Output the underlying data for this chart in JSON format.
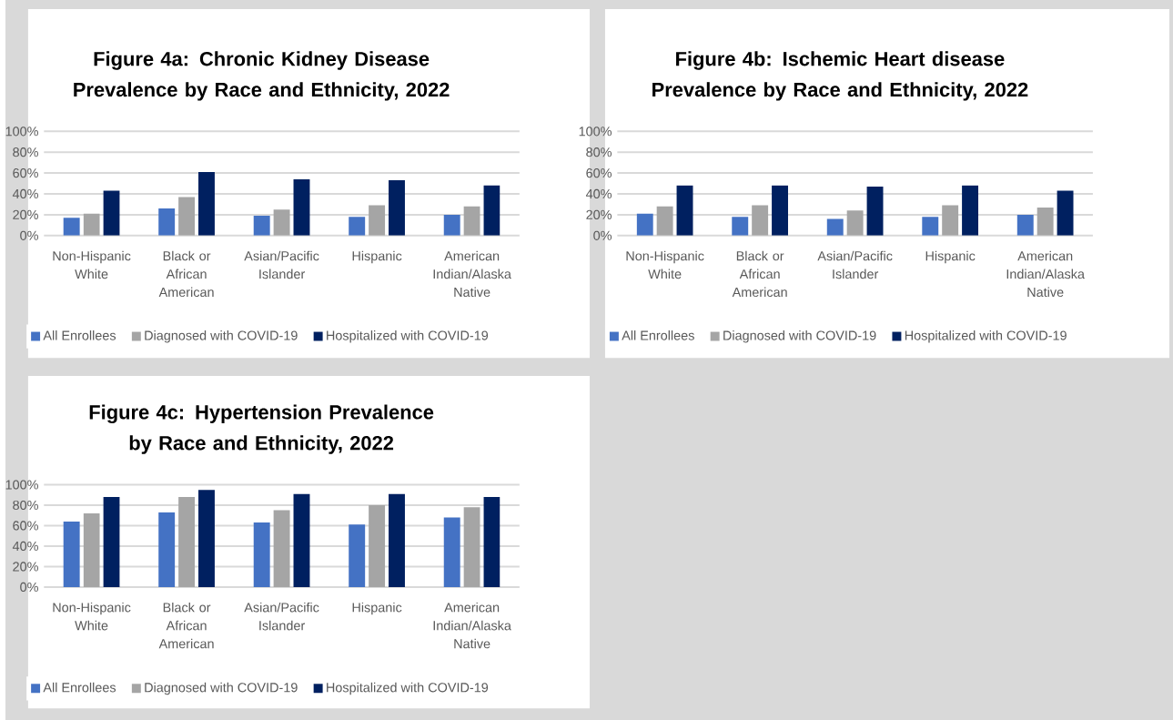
{
  "chart_data": [
    {
      "type": "bar",
      "title": "Figure 4a: Chronic Kidney Disease Prevalence by Race and Ethnicity, 2022",
      "categories": [
        "Non-Hispanic White",
        "Black or African American",
        "Asian/Pacific Islander",
        "Hispanic",
        "American Indian/Alaska Native"
      ],
      "series": [
        {
          "name": "All Enrollees",
          "color": "#4472c4",
          "values": [
            17,
            26,
            19,
            18,
            20
          ]
        },
        {
          "name": "Diagnosed with COVID-19",
          "color": "#a5a5a5",
          "values": [
            21,
            37,
            25,
            29,
            28
          ]
        },
        {
          "name": "Hospitalized with COVID-19",
          "color": "#002060",
          "values": [
            43,
            61,
            54,
            53,
            48
          ]
        }
      ],
      "ylim": [
        0,
        100
      ],
      "yticks": [
        {
          "value": 0,
          "label": "0%"
        },
        {
          "value": 20,
          "label": "20%"
        },
        {
          "value": 40,
          "label": "40%"
        },
        {
          "value": 60,
          "label": "60%"
        },
        {
          "value": 80,
          "label": "80%"
        },
        {
          "value": 100,
          "label": "100%"
        }
      ],
      "grid": "y",
      "legend": "bottom"
    },
    {
      "type": "bar",
      "title": "Figure 4b: Ischemic Heart disease Prevalence by Race and Ethnicity, 2022",
      "categories": [
        "Non-Hispanic White",
        "Black or African American",
        "Asian/Pacific Islander",
        "Hispanic",
        "American Indian/Alaska Native"
      ],
      "series": [
        {
          "name": "All Enrollees",
          "color": "#4472c4",
          "values": [
            21,
            18,
            16,
            18,
            20
          ]
        },
        {
          "name": "Diagnosed with COVID-19",
          "color": "#a5a5a5",
          "values": [
            28,
            29,
            24,
            29,
            27
          ]
        },
        {
          "name": "Hospitalized with COVID-19",
          "color": "#002060",
          "values": [
            48,
            48,
            47,
            48,
            43
          ]
        }
      ],
      "ylim": [
        0,
        100
      ],
      "yticks": [
        {
          "value": 0,
          "label": "0%"
        },
        {
          "value": 20,
          "label": "20%"
        },
        {
          "value": 40,
          "label": "40%"
        },
        {
          "value": 60,
          "label": "60%"
        },
        {
          "value": 80,
          "label": "80%"
        },
        {
          "value": 100,
          "label": "100%"
        }
      ],
      "grid": "y",
      "legend": "bottom"
    },
    {
      "type": "bar",
      "title": "Figure 4c: Hypertension Prevalence by Race and Ethnicity, 2022",
      "categories": [
        "Non-Hispanic White",
        "Black or African American",
        "Asian/Pacific Islander",
        "Hispanic",
        "American Indian/Alaska Native"
      ],
      "series": [
        {
          "name": "All Enrollees",
          "color": "#4472c4",
          "values": [
            64,
            73,
            63,
            61,
            68
          ]
        },
        {
          "name": "Diagnosed with COVID-19",
          "color": "#a5a5a5",
          "values": [
            72,
            88,
            75,
            80,
            78
          ]
        },
        {
          "name": "Hospitalized with COVID-19",
          "color": "#002060",
          "values": [
            88,
            95,
            91,
            91,
            88
          ]
        }
      ],
      "ylim": [
        0,
        100
      ],
      "yticks": [
        {
          "value": 0,
          "label": "0%"
        },
        {
          "value": 20,
          "label": "20%"
        },
        {
          "value": 40,
          "label": "40%"
        },
        {
          "value": 60,
          "label": "60%"
        },
        {
          "value": 80,
          "label": "80%"
        },
        {
          "value": 100,
          "label": "100%"
        }
      ],
      "grid": "y",
      "legend": "bottom"
    }
  ]
}
